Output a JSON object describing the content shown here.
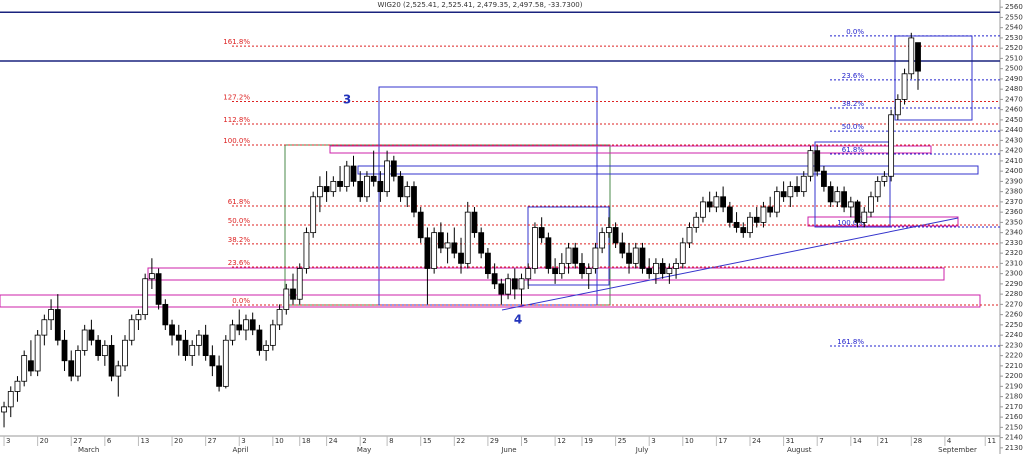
{
  "chart_data": {
    "type": "candlestick",
    "title": "WIG20 (2,525.41, 2,525.41, 2,479.35, 2,497.58, -33.7300)",
    "annotations": [
      "3",
      "4"
    ],
    "up_color": "#ffffff",
    "down_color": "#000000",
    "ylim": [
      2124,
      2567
    ],
    "xlim": [
      -0.6,
      148.2
    ],
    "yticks": [
      2130,
      2140,
      2150,
      2160,
      2170,
      2180,
      2190,
      2200,
      2210,
      2220,
      2230,
      2240,
      2250,
      2260,
      2270,
      2280,
      2290,
      2300,
      2310,
      2320,
      2330,
      2340,
      2350,
      2360,
      2370,
      2380,
      2390,
      2400,
      2410,
      2420,
      2430,
      2440,
      2450,
      2460,
      2470,
      2480,
      2490,
      2500,
      2510,
      2520,
      2530,
      2540,
      2550,
      2560
    ],
    "xticks": [
      {
        "value": 0,
        "label": "3"
      },
      {
        "value": 5,
        "label": "20"
      },
      {
        "value": 10,
        "label": "27"
      },
      {
        "value": 15,
        "label": "6"
      },
      {
        "value": 20,
        "label": "13"
      },
      {
        "value": 25,
        "label": "20"
      },
      {
        "value": 30,
        "label": "27"
      },
      {
        "value": 35,
        "label": "3"
      },
      {
        "value": 40,
        "label": "10"
      },
      {
        "value": 44,
        "label": "18"
      },
      {
        "value": 48,
        "label": "24"
      },
      {
        "value": 53,
        "label": "2"
      },
      {
        "value": 57,
        "label": "8"
      },
      {
        "value": 62,
        "label": "15"
      },
      {
        "value": 67,
        "label": "22"
      },
      {
        "value": 72,
        "label": "29"
      },
      {
        "value": 77,
        "label": "5"
      },
      {
        "value": 82,
        "label": "12"
      },
      {
        "value": 86,
        "label": "19"
      },
      {
        "value": 91,
        "label": "25"
      },
      {
        "value": 96,
        "label": "3"
      },
      {
        "value": 101,
        "label": "10"
      },
      {
        "value": 106,
        "label": "17"
      },
      {
        "value": 111,
        "label": "24"
      },
      {
        "value": 116,
        "label": "31"
      },
      {
        "value": 121,
        "label": "7"
      },
      {
        "value": 126,
        "label": "14"
      },
      {
        "value": 130,
        "label": "21"
      },
      {
        "value": 135,
        "label": "28"
      },
      {
        "value": 140,
        "label": "4"
      },
      {
        "value": 146,
        "label": "11"
      }
    ],
    "months": [
      {
        "value": 11,
        "label": "March"
      },
      {
        "value": 34,
        "label": "April"
      },
      {
        "value": 52.5,
        "label": "May"
      },
      {
        "value": 74,
        "label": "June"
      },
      {
        "value": 94,
        "label": "July"
      },
      {
        "value": 116.5,
        "label": "August"
      },
      {
        "value": 139,
        "label": "September"
      }
    ],
    "fib_left": [
      {
        "value": 2522,
        "label": "161.8%"
      },
      {
        "value": 2468,
        "label": "127.2%"
      },
      {
        "value": 2446,
        "label": "112.8%"
      },
      {
        "value": 2425.5,
        "label": "100.0%"
      },
      {
        "value": 2366,
        "label": "61.8%"
      },
      {
        "value": 2347.4,
        "label": "50.0%"
      },
      {
        "value": 2329,
        "label": "38.2%"
      },
      {
        "value": 2306.5,
        "label": "23.6%"
      },
      {
        "value": 2269.4,
        "label": "0.0%"
      }
    ],
    "fib_right": [
      {
        "value": 2532,
        "label": "0.0%"
      },
      {
        "value": 2489,
        "label": "23.6%"
      },
      {
        "value": 2461.6,
        "label": "38.2%"
      },
      {
        "value": 2439,
        "label": "50.0%"
      },
      {
        "value": 2416.7,
        "label": "61.8%"
      },
      {
        "value": 2345.5,
        "label": "100.0%"
      },
      {
        "value": 2229.4,
        "label": "161.8%"
      }
    ],
    "hlines": [
      2555,
      2507.5
    ],
    "candles": [
      [
        2165,
        2175,
        2150,
        2170
      ],
      [
        2170,
        2190,
        2160,
        2185
      ],
      [
        2185,
        2200,
        2175,
        2195
      ],
      [
        2195,
        2225,
        2190,
        2220
      ],
      [
        2215,
        2235,
        2200,
        2205
      ],
      [
        2205,
        2245,
        2200,
        2240
      ],
      [
        2240,
        2260,
        2230,
        2255
      ],
      [
        2255,
        2275,
        2245,
        2265
      ],
      [
        2265,
        2280,
        2230,
        2235
      ],
      [
        2235,
        2245,
        2205,
        2215
      ],
      [
        2215,
        2225,
        2195,
        2200
      ],
      [
        2200,
        2230,
        2195,
        2225
      ],
      [
        2225,
        2250,
        2220,
        2245
      ],
      [
        2245,
        2255,
        2230,
        2235
      ],
      [
        2235,
        2240,
        2215,
        2220
      ],
      [
        2220,
        2235,
        2210,
        2230
      ],
      [
        2230,
        2240,
        2195,
        2200
      ],
      [
        2200,
        2215,
        2180,
        2210
      ],
      [
        2210,
        2240,
        2205,
        2235
      ],
      [
        2235,
        2260,
        2230,
        2255
      ],
      [
        2255,
        2265,
        2245,
        2260
      ],
      [
        2260,
        2300,
        2255,
        2295
      ],
      [
        2295,
        2315,
        2285,
        2300
      ],
      [
        2300,
        2305,
        2265,
        2270
      ],
      [
        2270,
        2275,
        2245,
        2250
      ],
      [
        2250,
        2255,
        2230,
        2240
      ],
      [
        2240,
        2250,
        2220,
        2235
      ],
      [
        2235,
        2245,
        2215,
        2220
      ],
      [
        2220,
        2235,
        2210,
        2230
      ],
      [
        2230,
        2245,
        2220,
        2240
      ],
      [
        2240,
        2250,
        2215,
        2220
      ],
      [
        2220,
        2230,
        2200,
        2210
      ],
      [
        2210,
        2220,
        2185,
        2190
      ],
      [
        2190,
        2240,
        2188,
        2235
      ],
      [
        2235,
        2255,
        2230,
        2250
      ],
      [
        2250,
        2265,
        2240,
        2245
      ],
      [
        2245,
        2260,
        2235,
        2255
      ],
      [
        2255,
        2262,
        2240,
        2245
      ],
      [
        2245,
        2250,
        2220,
        2225
      ],
      [
        2225,
        2235,
        2215,
        2230
      ],
      [
        2230,
        2255,
        2225,
        2250
      ],
      [
        2250,
        2270,
        2245,
        2265
      ],
      [
        2265,
        2290,
        2260,
        2285
      ],
      [
        2285,
        2300,
        2270,
        2275
      ],
      [
        2275,
        2310,
        2270,
        2305
      ],
      [
        2305,
        2345,
        2300,
        2340
      ],
      [
        2340,
        2380,
        2335,
        2375
      ],
      [
        2375,
        2395,
        2360,
        2385
      ],
      [
        2385,
        2400,
        2370,
        2380
      ],
      [
        2380,
        2395,
        2375,
        2390
      ],
      [
        2390,
        2405,
        2380,
        2385
      ],
      [
        2385,
        2410,
        2380,
        2405
      ],
      [
        2405,
        2415,
        2385,
        2390
      ],
      [
        2390,
        2400,
        2370,
        2375
      ],
      [
        2375,
        2400,
        2370,
        2395
      ],
      [
        2395,
        2420,
        2385,
        2390
      ],
      [
        2390,
        2400,
        2370,
        2380
      ],
      [
        2380,
        2420,
        2375,
        2410
      ],
      [
        2410,
        2415,
        2390,
        2395
      ],
      [
        2395,
        2400,
        2370,
        2375
      ],
      [
        2375,
        2390,
        2365,
        2385
      ],
      [
        2385,
        2390,
        2355,
        2360
      ],
      [
        2360,
        2365,
        2330,
        2335
      ],
      [
        2335,
        2345,
        2270,
        2305
      ],
      [
        2305,
        2345,
        2300,
        2340
      ],
      [
        2340,
        2350,
        2320,
        2325
      ],
      [
        2325,
        2340,
        2310,
        2330
      ],
      [
        2330,
        2345,
        2315,
        2320
      ],
      [
        2320,
        2335,
        2300,
        2310
      ],
      [
        2310,
        2370,
        2305,
        2360
      ],
      [
        2360,
        2365,
        2335,
        2340
      ],
      [
        2340,
        2345,
        2315,
        2320
      ],
      [
        2320,
        2325,
        2295,
        2300
      ],
      [
        2300,
        2310,
        2285,
        2290
      ],
      [
        2290,
        2295,
        2270,
        2280
      ],
      [
        2280,
        2300,
        2275,
        2295
      ],
      [
        2295,
        2305,
        2275,
        2285
      ],
      [
        2285,
        2300,
        2270,
        2295
      ],
      [
        2295,
        2310,
        2285,
        2305
      ],
      [
        2305,
        2350,
        2300,
        2345
      ],
      [
        2345,
        2355,
        2330,
        2335
      ],
      [
        2335,
        2340,
        2300,
        2305
      ],
      [
        2305,
        2315,
        2290,
        2300
      ],
      [
        2300,
        2320,
        2295,
        2310
      ],
      [
        2310,
        2330,
        2300,
        2325
      ],
      [
        2325,
        2330,
        2305,
        2310
      ],
      [
        2310,
        2320,
        2295,
        2300
      ],
      [
        2300,
        2310,
        2285,
        2305
      ],
      [
        2305,
        2330,
        2300,
        2325
      ],
      [
        2325,
        2345,
        2320,
        2340
      ],
      [
        2340,
        2355,
        2335,
        2345
      ],
      [
        2345,
        2350,
        2325,
        2330
      ],
      [
        2330,
        2340,
        2315,
        2320
      ],
      [
        2320,
        2330,
        2300,
        2310
      ],
      [
        2310,
        2330,
        2305,
        2325
      ],
      [
        2325,
        2330,
        2300,
        2305
      ],
      [
        2305,
        2315,
        2295,
        2300
      ],
      [
        2300,
        2315,
        2290,
        2310
      ],
      [
        2310,
        2315,
        2295,
        2300
      ],
      [
        2300,
        2310,
        2290,
        2305
      ],
      [
        2305,
        2315,
        2295,
        2310
      ],
      [
        2310,
        2335,
        2305,
        2330
      ],
      [
        2330,
        2350,
        2325,
        2345
      ],
      [
        2345,
        2360,
        2340,
        2355
      ],
      [
        2355,
        2375,
        2350,
        2370
      ],
      [
        2370,
        2380,
        2360,
        2365
      ],
      [
        2365,
        2380,
        2360,
        2375
      ],
      [
        2375,
        2385,
        2360,
        2365
      ],
      [
        2365,
        2370,
        2345,
        2350
      ],
      [
        2350,
        2360,
        2340,
        2345
      ],
      [
        2345,
        2350,
        2335,
        2340
      ],
      [
        2340,
        2360,
        2335,
        2355
      ],
      [
        2355,
        2365,
        2345,
        2350
      ],
      [
        2350,
        2370,
        2345,
        2365
      ],
      [
        2365,
        2375,
        2355,
        2360
      ],
      [
        2360,
        2385,
        2355,
        2380
      ],
      [
        2380,
        2390,
        2370,
        2375
      ],
      [
        2375,
        2390,
        2365,
        2385
      ],
      [
        2385,
        2395,
        2375,
        2380
      ],
      [
        2380,
        2400,
        2375,
        2395
      ],
      [
        2395,
        2425,
        2390,
        2420
      ],
      [
        2420,
        2425,
        2395,
        2400
      ],
      [
        2400,
        2405,
        2380,
        2385
      ],
      [
        2385,
        2390,
        2365,
        2370
      ],
      [
        2370,
        2385,
        2365,
        2380
      ],
      [
        2380,
        2385,
        2360,
        2365
      ],
      [
        2365,
        2375,
        2355,
        2370
      ],
      [
        2370,
        2372,
        2345,
        2350
      ],
      [
        2350,
        2365,
        2345,
        2360
      ],
      [
        2360,
        2380,
        2355,
        2375
      ],
      [
        2375,
        2395,
        2370,
        2390
      ],
      [
        2390,
        2400,
        2385,
        2395
      ],
      [
        2395,
        2460,
        2390,
        2455
      ],
      [
        2455,
        2475,
        2450,
        2470
      ],
      [
        2470,
        2500,
        2465,
        2495
      ],
      [
        2495,
        2535,
        2490,
        2530
      ],
      [
        2525.41,
        2525.41,
        2479.35,
        2497.58
      ]
    ]
  }
}
